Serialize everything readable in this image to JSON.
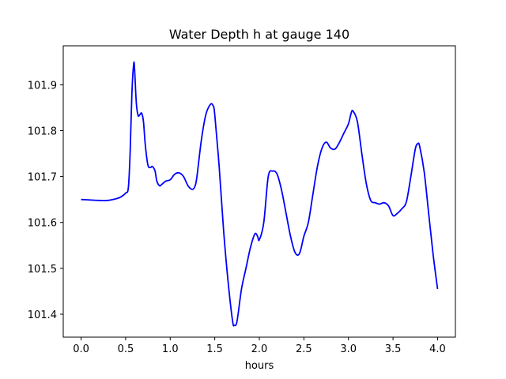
{
  "chart_data": {
    "type": "line",
    "title": "Water Depth h at gauge 140",
    "xlabel": "hours",
    "ylabel": "",
    "xlim": [
      -0.2,
      4.2
    ],
    "ylim": [
      101.35,
      101.985
    ],
    "xticks": [
      0.0,
      0.5,
      1.0,
      1.5,
      2.0,
      2.5,
      3.0,
      3.5,
      4.0
    ],
    "xtick_labels": [
      "0.0",
      "0.5",
      "1.0",
      "1.5",
      "2.0",
      "2.5",
      "3.0",
      "3.5",
      "4.0"
    ],
    "yticks": [
      101.4,
      101.5,
      101.6,
      101.7,
      101.8,
      101.9
    ],
    "ytick_labels": [
      "101.4",
      "101.5",
      "101.6",
      "101.7",
      "101.8",
      "101.9"
    ],
    "grid": false,
    "series": [
      {
        "color": "#0000ff",
        "x": [
          0.0,
          0.1,
          0.2,
          0.3,
          0.4,
          0.45,
          0.5,
          0.53,
          0.55,
          0.57,
          0.59,
          0.6,
          0.62,
          0.64,
          0.66,
          0.68,
          0.7,
          0.72,
          0.75,
          0.78,
          0.8,
          0.83,
          0.85,
          0.88,
          0.9,
          0.95,
          1.0,
          1.05,
          1.1,
          1.15,
          1.2,
          1.25,
          1.28,
          1.3,
          1.35,
          1.4,
          1.45,
          1.48,
          1.5,
          1.55,
          1.6,
          1.65,
          1.7,
          1.72,
          1.75,
          1.8,
          1.85,
          1.9,
          1.95,
          1.98,
          2.0,
          2.05,
          2.1,
          2.15,
          2.2,
          2.25,
          2.3,
          2.35,
          2.4,
          2.45,
          2.5,
          2.55,
          2.6,
          2.65,
          2.7,
          2.75,
          2.8,
          2.85,
          2.9,
          2.95,
          3.0,
          3.03,
          3.05,
          3.1,
          3.15,
          3.2,
          3.25,
          3.3,
          3.35,
          3.4,
          3.45,
          3.5,
          3.55,
          3.6,
          3.65,
          3.7,
          3.75,
          3.78,
          3.8,
          3.85,
          3.9,
          3.95,
          4.0
        ],
        "y": [
          101.65,
          101.649,
          101.648,
          101.648,
          101.652,
          101.656,
          101.664,
          101.675,
          101.75,
          101.88,
          101.945,
          101.935,
          101.86,
          101.833,
          101.835,
          101.838,
          101.82,
          101.77,
          101.725,
          101.72,
          101.722,
          101.712,
          101.69,
          101.68,
          101.682,
          101.69,
          101.693,
          101.705,
          101.708,
          101.7,
          101.68,
          101.672,
          101.68,
          101.7,
          101.78,
          101.835,
          101.857,
          101.855,
          101.835,
          101.72,
          101.58,
          101.47,
          101.385,
          101.376,
          101.385,
          101.455,
          101.5,
          101.545,
          101.575,
          101.57,
          101.562,
          101.6,
          101.7,
          101.712,
          101.705,
          101.67,
          101.62,
          101.57,
          101.535,
          101.532,
          101.57,
          101.6,
          101.66,
          101.72,
          101.76,
          101.775,
          101.762,
          101.76,
          101.775,
          101.795,
          101.815,
          101.838,
          101.843,
          101.82,
          101.75,
          101.685,
          101.648,
          101.643,
          101.64,
          101.643,
          101.636,
          101.615,
          101.62,
          101.63,
          101.645,
          101.7,
          101.76,
          101.772,
          101.765,
          101.71,
          101.62,
          101.53,
          101.455
        ]
      }
    ]
  }
}
